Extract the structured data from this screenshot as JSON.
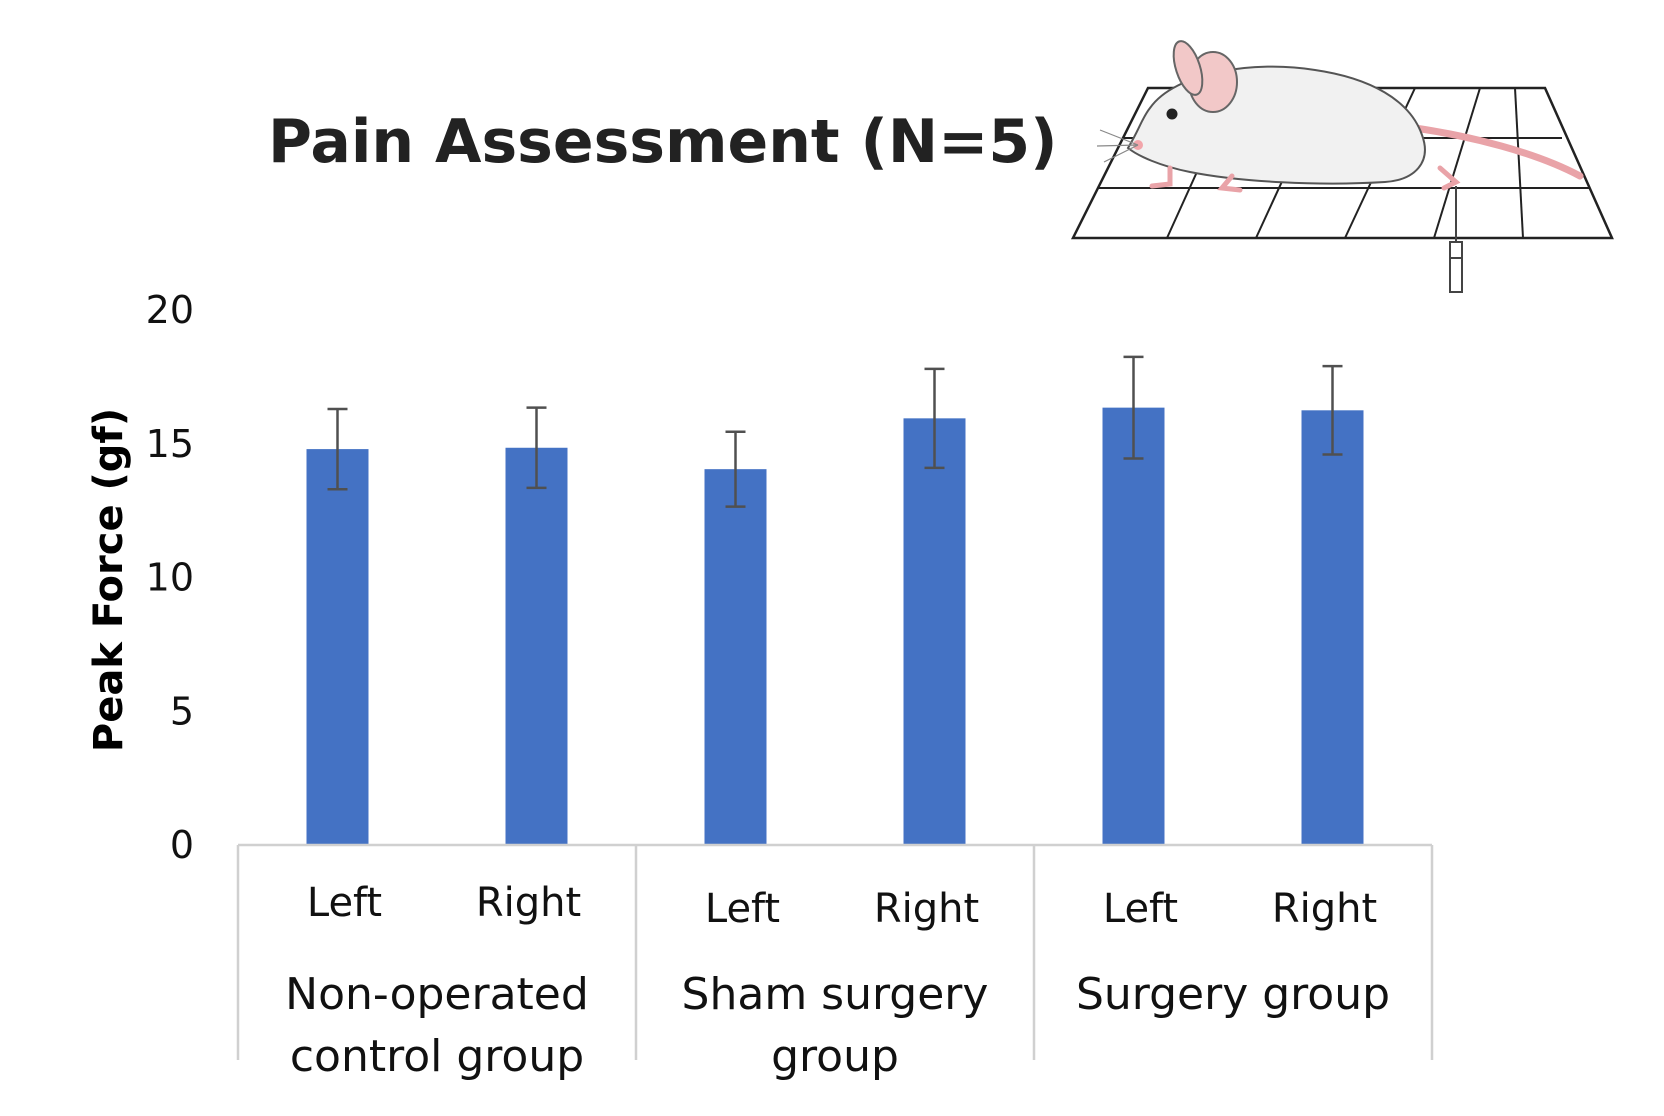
{
  "chart_data": {
    "type": "bar",
    "title": "Pain Assessment (N=5)",
    "ylabel": "Peak Force (gf)",
    "xlabel": "",
    "ylim": [
      0,
      20
    ],
    "yticks": [
      "0",
      "5",
      "10",
      "15",
      "20"
    ],
    "grid": false,
    "legend": "none",
    "bar_color": "#4472C4",
    "error_color": "#505050",
    "groups": [
      {
        "label_lines": [
          "Non-operated",
          "control group"
        ],
        "categories": [
          "Left",
          "Right"
        ],
        "values": [
          14.8,
          14.85
        ],
        "errors": [
          1.5,
          1.5
        ]
      },
      {
        "label_lines": [
          "Sham surgery",
          "group"
        ],
        "categories": [
          "Left",
          "Right"
        ],
        "values": [
          14.05,
          15.95
        ],
        "errors": [
          1.4,
          1.85
        ]
      },
      {
        "label_lines": [
          "Surgery group"
        ],
        "categories": [
          "Left",
          "Right"
        ],
        "values": [
          16.35,
          16.25
        ],
        "errors": [
          1.9,
          1.65
        ]
      }
    ]
  },
  "illustration": {
    "icon": "mouse-on-grid-icon"
  }
}
